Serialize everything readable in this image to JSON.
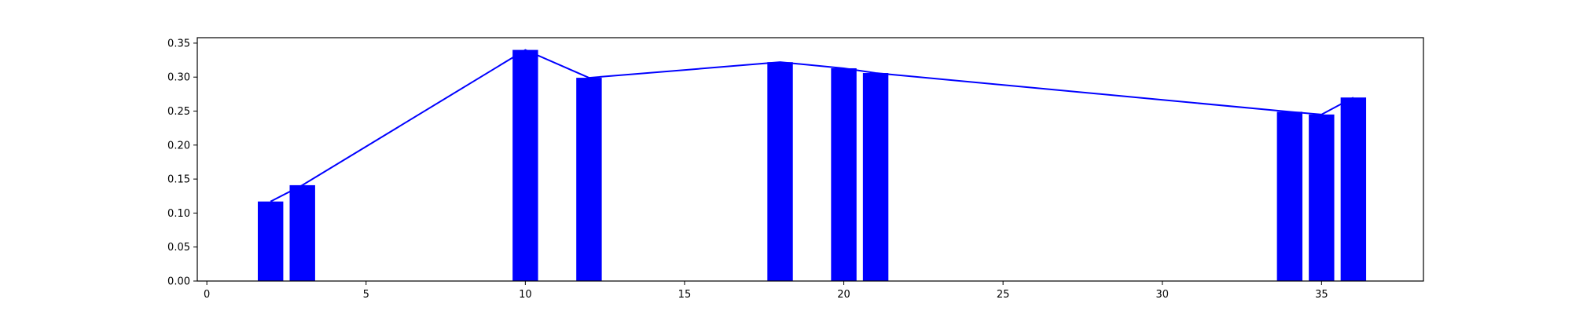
{
  "chart_data": {
    "type": "bar",
    "x": [
      2,
      3,
      10,
      12,
      18,
      20,
      21,
      34,
      35,
      36
    ],
    "values": [
      0.117,
      0.141,
      0.34,
      0.299,
      0.322,
      0.313,
      0.306,
      0.249,
      0.245,
      0.27
    ],
    "line_overlay": true,
    "title": "",
    "xlabel": "",
    "ylabel": "",
    "xlim": [
      -0.3,
      38.2
    ],
    "ylim": [
      0,
      0.358
    ],
    "xticks": [
      0,
      5,
      10,
      15,
      20,
      25,
      30,
      35
    ],
    "yticks": [
      0.0,
      0.05,
      0.1,
      0.15,
      0.2,
      0.25,
      0.3,
      0.35
    ],
    "xtick_labels": [
      "0",
      "5",
      "10",
      "15",
      "20",
      "25",
      "30",
      "35"
    ],
    "ytick_labels": [
      "0.00",
      "0.05",
      "0.10",
      "0.15",
      "0.20",
      "0.25",
      "0.30",
      "0.35"
    ],
    "bar_width": 0.8,
    "grid": false,
    "colors": {
      "bars": "#0000ff",
      "line": "#0000ff",
      "axes": "#000000"
    }
  }
}
